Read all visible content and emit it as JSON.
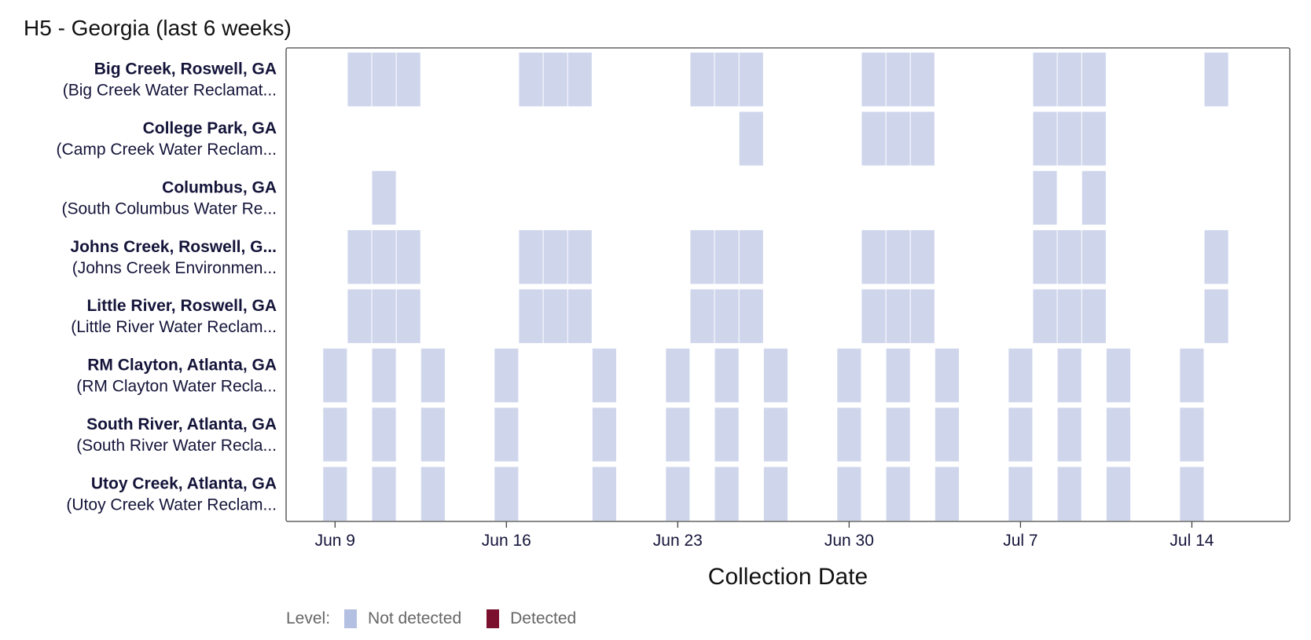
{
  "chart_data": {
    "type": "heatmap",
    "title": "H5 - Georgia (last 6 weeks)",
    "xlabel": "Collection Date",
    "x_ticks": [
      "Jun 9",
      "Jun 16",
      "Jun 23",
      "Jun 30",
      "Jul 7",
      "Jul 14"
    ],
    "x_tick_dates": [
      "2024-06-09",
      "2024-06-16",
      "2024-06-23",
      "2024-06-30",
      "2024-07-07",
      "2024-07-14"
    ],
    "x_range": [
      "2024-06-07",
      "2024-07-18"
    ],
    "colors": {
      "not_detected": "#cfd6ec",
      "detected": "#7a0f2e",
      "not_detected_legend": "#b4c0e2"
    },
    "legend": {
      "title": "Level:",
      "items": [
        "Not detected",
        "Detected"
      ],
      "position": "bottom"
    },
    "sites": [
      {
        "name": "Big Creek, Roswell, GA",
        "facility": "(Big Creek Water Reclamat...",
        "samples": [
          "2024-06-10",
          "2024-06-11",
          "2024-06-12",
          "2024-06-17",
          "2024-06-18",
          "2024-06-19",
          "2024-06-24",
          "2024-06-25",
          "2024-06-26",
          "2024-07-01",
          "2024-07-02",
          "2024-07-03",
          "2024-07-08",
          "2024-07-09",
          "2024-07-10",
          "2024-07-15"
        ]
      },
      {
        "name": "College Park, GA",
        "facility": "(Camp Creek Water Reclam...",
        "samples": [
          "2024-06-26",
          "2024-07-01",
          "2024-07-02",
          "2024-07-03",
          "2024-07-08",
          "2024-07-09",
          "2024-07-10"
        ]
      },
      {
        "name": "Columbus, GA",
        "facility": "(South Columbus Water Re...",
        "samples": [
          "2024-06-11",
          "2024-07-08",
          "2024-07-10"
        ]
      },
      {
        "name": "Johns Creek, Roswell, G...",
        "facility": "(Johns Creek Environmen...",
        "samples": [
          "2024-06-10",
          "2024-06-11",
          "2024-06-12",
          "2024-06-17",
          "2024-06-18",
          "2024-06-19",
          "2024-06-24",
          "2024-06-25",
          "2024-06-26",
          "2024-07-01",
          "2024-07-02",
          "2024-07-03",
          "2024-07-08",
          "2024-07-09",
          "2024-07-10",
          "2024-07-15"
        ]
      },
      {
        "name": "Little River, Roswell, GA",
        "facility": "(Little River Water Reclam...",
        "samples": [
          "2024-06-10",
          "2024-06-11",
          "2024-06-12",
          "2024-06-17",
          "2024-06-18",
          "2024-06-19",
          "2024-06-24",
          "2024-06-25",
          "2024-06-26",
          "2024-07-01",
          "2024-07-02",
          "2024-07-03",
          "2024-07-08",
          "2024-07-09",
          "2024-07-10",
          "2024-07-15"
        ]
      },
      {
        "name": "RM Clayton, Atlanta, GA",
        "facility": "(RM Clayton Water Recla...",
        "samples": [
          "2024-06-09",
          "2024-06-11",
          "2024-06-13",
          "2024-06-16",
          "2024-06-20",
          "2024-06-23",
          "2024-06-25",
          "2024-06-27",
          "2024-06-30",
          "2024-07-02",
          "2024-07-04",
          "2024-07-07",
          "2024-07-09",
          "2024-07-11",
          "2024-07-14"
        ]
      },
      {
        "name": "South River, Atlanta, GA",
        "facility": "(South River Water Recla...",
        "samples": [
          "2024-06-09",
          "2024-06-11",
          "2024-06-13",
          "2024-06-16",
          "2024-06-20",
          "2024-06-23",
          "2024-06-25",
          "2024-06-27",
          "2024-06-30",
          "2024-07-02",
          "2024-07-04",
          "2024-07-07",
          "2024-07-09",
          "2024-07-11",
          "2024-07-14"
        ]
      },
      {
        "name": "Utoy Creek, Atlanta, GA",
        "facility": "(Utoy Creek Water Reclam...",
        "samples": [
          "2024-06-09",
          "2024-06-11",
          "2024-06-13",
          "2024-06-16",
          "2024-06-20",
          "2024-06-23",
          "2024-06-25",
          "2024-06-27",
          "2024-06-30",
          "2024-07-02",
          "2024-07-04",
          "2024-07-07",
          "2024-07-09",
          "2024-07-11",
          "2024-07-14"
        ]
      }
    ]
  }
}
